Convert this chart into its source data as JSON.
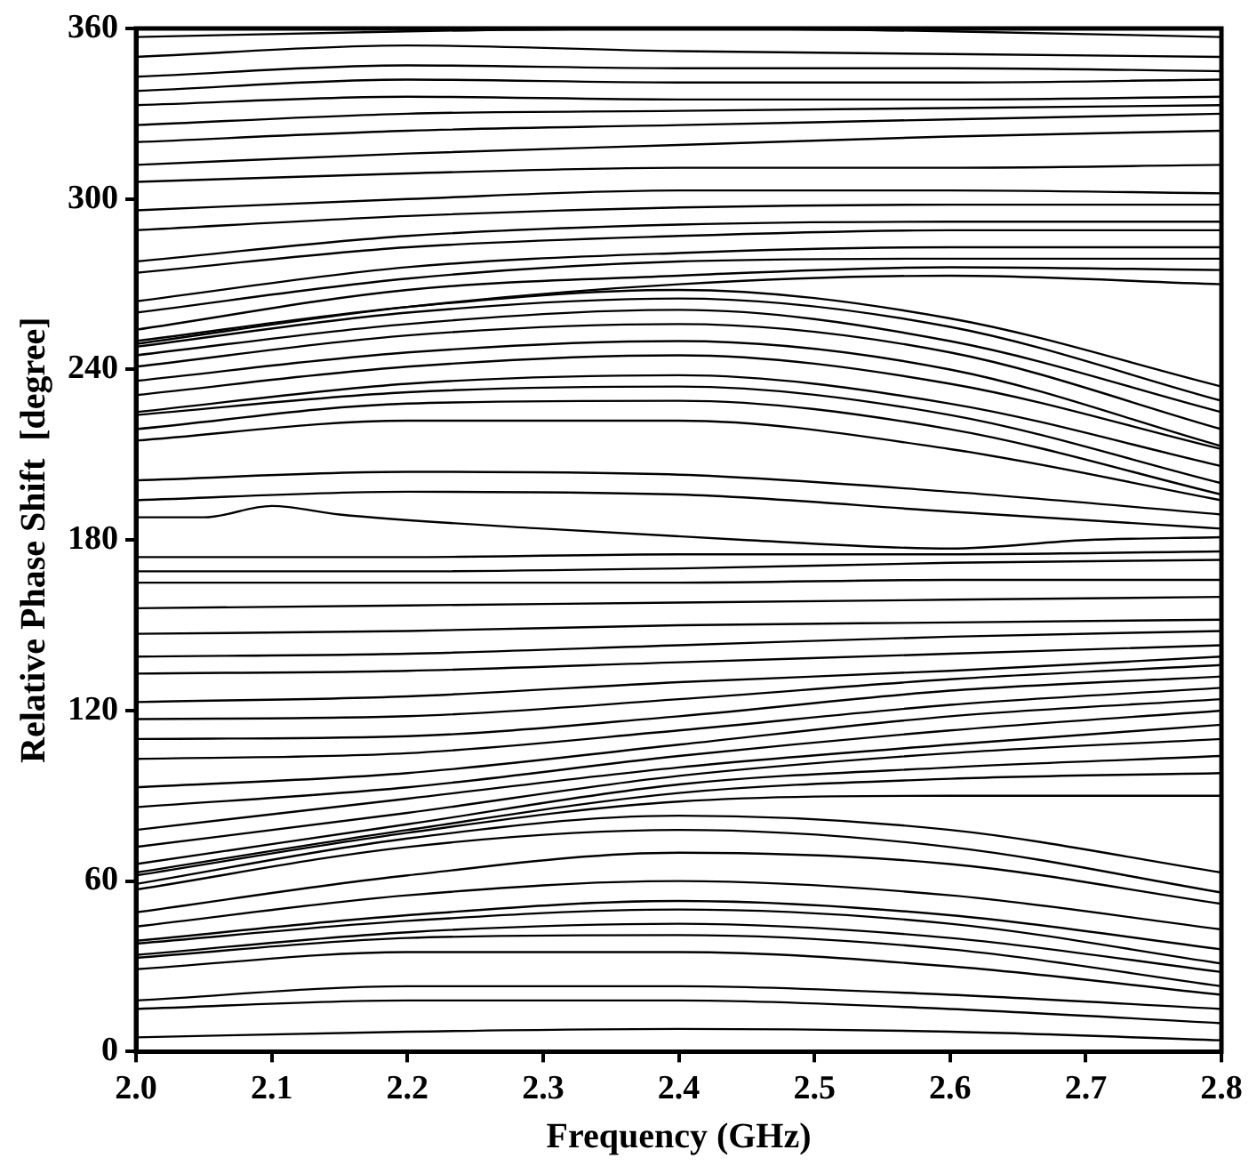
{
  "chart_data": {
    "type": "line",
    "xlabel": "Frequency (GHz)",
    "ylabel": "Relative Phase Shift  [degree]",
    "x": [
      2.0,
      2.2,
      2.4,
      2.6,
      2.8
    ],
    "xlim": [
      2.0,
      2.8
    ],
    "xticks": [
      {
        "value": 2.0,
        "label": "2.0"
      },
      2.1,
      2.2,
      2.3,
      2.4,
      2.5,
      2.6,
      2.7,
      2.8
    ],
    "ylim": [
      0,
      360
    ],
    "yticks": [
      0,
      60,
      120,
      180,
      240,
      300,
      360
    ],
    "grid": false,
    "legend": false,
    "marker": "none",
    "line_style": "solid",
    "series": [
      {
        "color": "#000000",
        "values": [
          5,
          7,
          8,
          7,
          4
        ]
      },
      {
        "color": "#000000",
        "values": [
          15,
          18,
          18,
          15,
          10
        ]
      },
      {
        "color": "#000000",
        "values": [
          18,
          23,
          23,
          20,
          15
        ]
      },
      {
        "color": "#000000",
        "values": [
          29,
          35,
          35,
          30,
          20
        ]
      },
      {
        "color": "#000000",
        "values": [
          33,
          40,
          41,
          36,
          23
        ]
      },
      {
        "color": "#000000",
        "values": [
          34,
          42,
          45,
          40,
          28
        ]
      },
      {
        "color": "#000000",
        "values": [
          38,
          46,
          50,
          45,
          31
        ]
      },
      {
        "color": "#000000",
        "values": [
          39,
          48,
          53,
          48,
          36
        ]
      },
      {
        "color": "#000000",
        "values": [
          44,
          55,
          60,
          55,
          43
        ]
      },
      {
        "color": "#000000",
        "values": [
          49,
          62,
          70,
          66,
          52
        ]
      },
      {
        "color": "#000000",
        "values": [
          57,
          72,
          78,
          72,
          56
        ]
      },
      {
        "color": "#000000",
        "values": [
          59,
          75,
          83,
          78,
          63
        ]
      },
      {
        "color": "#000000",
        "values": [
          62,
          77,
          88,
          90,
          90
        ]
      },
      {
        "color": "#000000",
        "values": [
          63,
          78,
          91,
          96,
          98
        ]
      },
      {
        "color": "#000000",
        "values": [
          66,
          80,
          94,
          100,
          104
        ]
      },
      {
        "color": "#000000",
        "values": [
          72,
          84,
          97,
          105,
          110
        ]
      },
      {
        "color": "#000000",
        "values": [
          78,
          89,
          100,
          108,
          115
        ]
      },
      {
        "color": "#000000",
        "values": [
          86,
          93,
          104,
          113,
          120
        ]
      },
      {
        "color": "#000000",
        "values": [
          93,
          98,
          108,
          118,
          124
        ]
      },
      {
        "color": "#000000",
        "values": [
          103,
          105,
          113,
          122,
          128
        ]
      },
      {
        "color": "#000000",
        "values": [
          110,
          111,
          118,
          127,
          132
        ]
      },
      {
        "color": "#000000",
        "values": [
          117,
          118,
          124,
          131,
          136
        ]
      },
      {
        "color": "#000000",
        "values": [
          123,
          125,
          130,
          134,
          139
        ]
      },
      {
        "color": "#000000",
        "values": [
          133,
          134,
          137,
          140,
          143
        ]
      },
      {
        "color": "#000000",
        "values": [
          139,
          140,
          143,
          146,
          148
        ]
      },
      {
        "color": "#000000",
        "values": [
          147,
          148,
          150,
          151,
          152
        ]
      },
      {
        "color": "#000000",
        "values": [
          156,
          157,
          158,
          159,
          160
        ]
      },
      {
        "color": "#000000",
        "values": [
          165,
          165,
          165,
          166,
          166
        ]
      },
      {
        "color": "#000000",
        "values": [
          169,
          169,
          170,
          172,
          173
        ]
      },
      {
        "color": "#000000",
        "values": [
          174,
          174,
          175,
          175,
          176
        ]
      },
      {
        "color": "#000000",
        "x": [
          2.0,
          2.05,
          2.1,
          2.15,
          2.3,
          2.45,
          2.6,
          2.7,
          2.8
        ],
        "values": [
          188,
          188,
          192,
          189,
          184,
          180,
          177,
          180,
          181
        ]
      },
      {
        "color": "#000000",
        "values": [
          194,
          197,
          196,
          190,
          184
        ]
      },
      {
        "color": "#000000",
        "values": [
          201,
          204,
          203,
          197,
          189
        ]
      },
      {
        "color": "#000000",
        "values": [
          215,
          222,
          222,
          212,
          194
        ]
      },
      {
        "color": "#000000",
        "values": [
          219,
          228,
          229,
          219,
          196
        ]
      },
      {
        "color": "#000000",
        "values": [
          224,
          232,
          234,
          224,
          200
        ]
      },
      {
        "color": "#000000",
        "values": [
          225,
          235,
          238,
          228,
          206
        ]
      },
      {
        "color": "#000000",
        "values": [
          231,
          241,
          245,
          235,
          212
        ]
      },
      {
        "color": "#000000",
        "values": [
          236,
          246,
          250,
          240,
          213
        ]
      },
      {
        "color": "#000000",
        "values": [
          241,
          252,
          256,
          246,
          219
        ]
      },
      {
        "color": "#000000",
        "values": [
          245,
          256,
          261,
          250,
          225
        ]
      },
      {
        "color": "#000000",
        "values": [
          248,
          260,
          265,
          255,
          229
        ]
      },
      {
        "color": "#000000",
        "values": [
          250,
          262,
          268,
          258,
          234
        ]
      },
      {
        "color": "#000000",
        "values": [
          249,
          262,
          270,
          273,
          270
        ]
      },
      {
        "color": "#000000",
        "values": [
          254,
          268,
          273,
          276,
          275
        ]
      },
      {
        "color": "#000000",
        "values": [
          260,
          272,
          278,
          279,
          279
        ]
      },
      {
        "color": "#000000",
        "values": [
          264,
          276,
          281,
          283,
          283
        ]
      },
      {
        "color": "#000000",
        "values": [
          274,
          283,
          287,
          289,
          289
        ]
      },
      {
        "color": "#000000",
        "values": [
          278,
          287,
          291,
          292,
          292
        ]
      },
      {
        "color": "#000000",
        "values": [
          289,
          294,
          297,
          298,
          298
        ]
      },
      {
        "color": "#000000",
        "values": [
          296,
          300,
          303,
          303,
          302
        ]
      },
      {
        "color": "#000000",
        "values": [
          306,
          309,
          311,
          311,
          312
        ]
      },
      {
        "color": "#000000",
        "values": [
          312,
          316,
          319,
          322,
          324
        ]
      },
      {
        "color": "#000000",
        "values": [
          320,
          324,
          326,
          328,
          330
        ]
      },
      {
        "color": "#000000",
        "values": [
          326,
          330,
          331,
          332,
          333
        ]
      },
      {
        "color": "#000000",
        "values": [
          333,
          336,
          335,
          335,
          336
        ]
      },
      {
        "color": "#000000",
        "values": [
          338,
          342,
          341,
          341,
          342
        ]
      },
      {
        "color": "#000000",
        "values": [
          343,
          347,
          346,
          346,
          345
        ]
      },
      {
        "color": "#000000",
        "values": [
          350,
          354,
          352,
          351,
          350
        ]
      },
      {
        "color": "#000000",
        "values": [
          357,
          359,
          360,
          359,
          357
        ]
      }
    ]
  }
}
